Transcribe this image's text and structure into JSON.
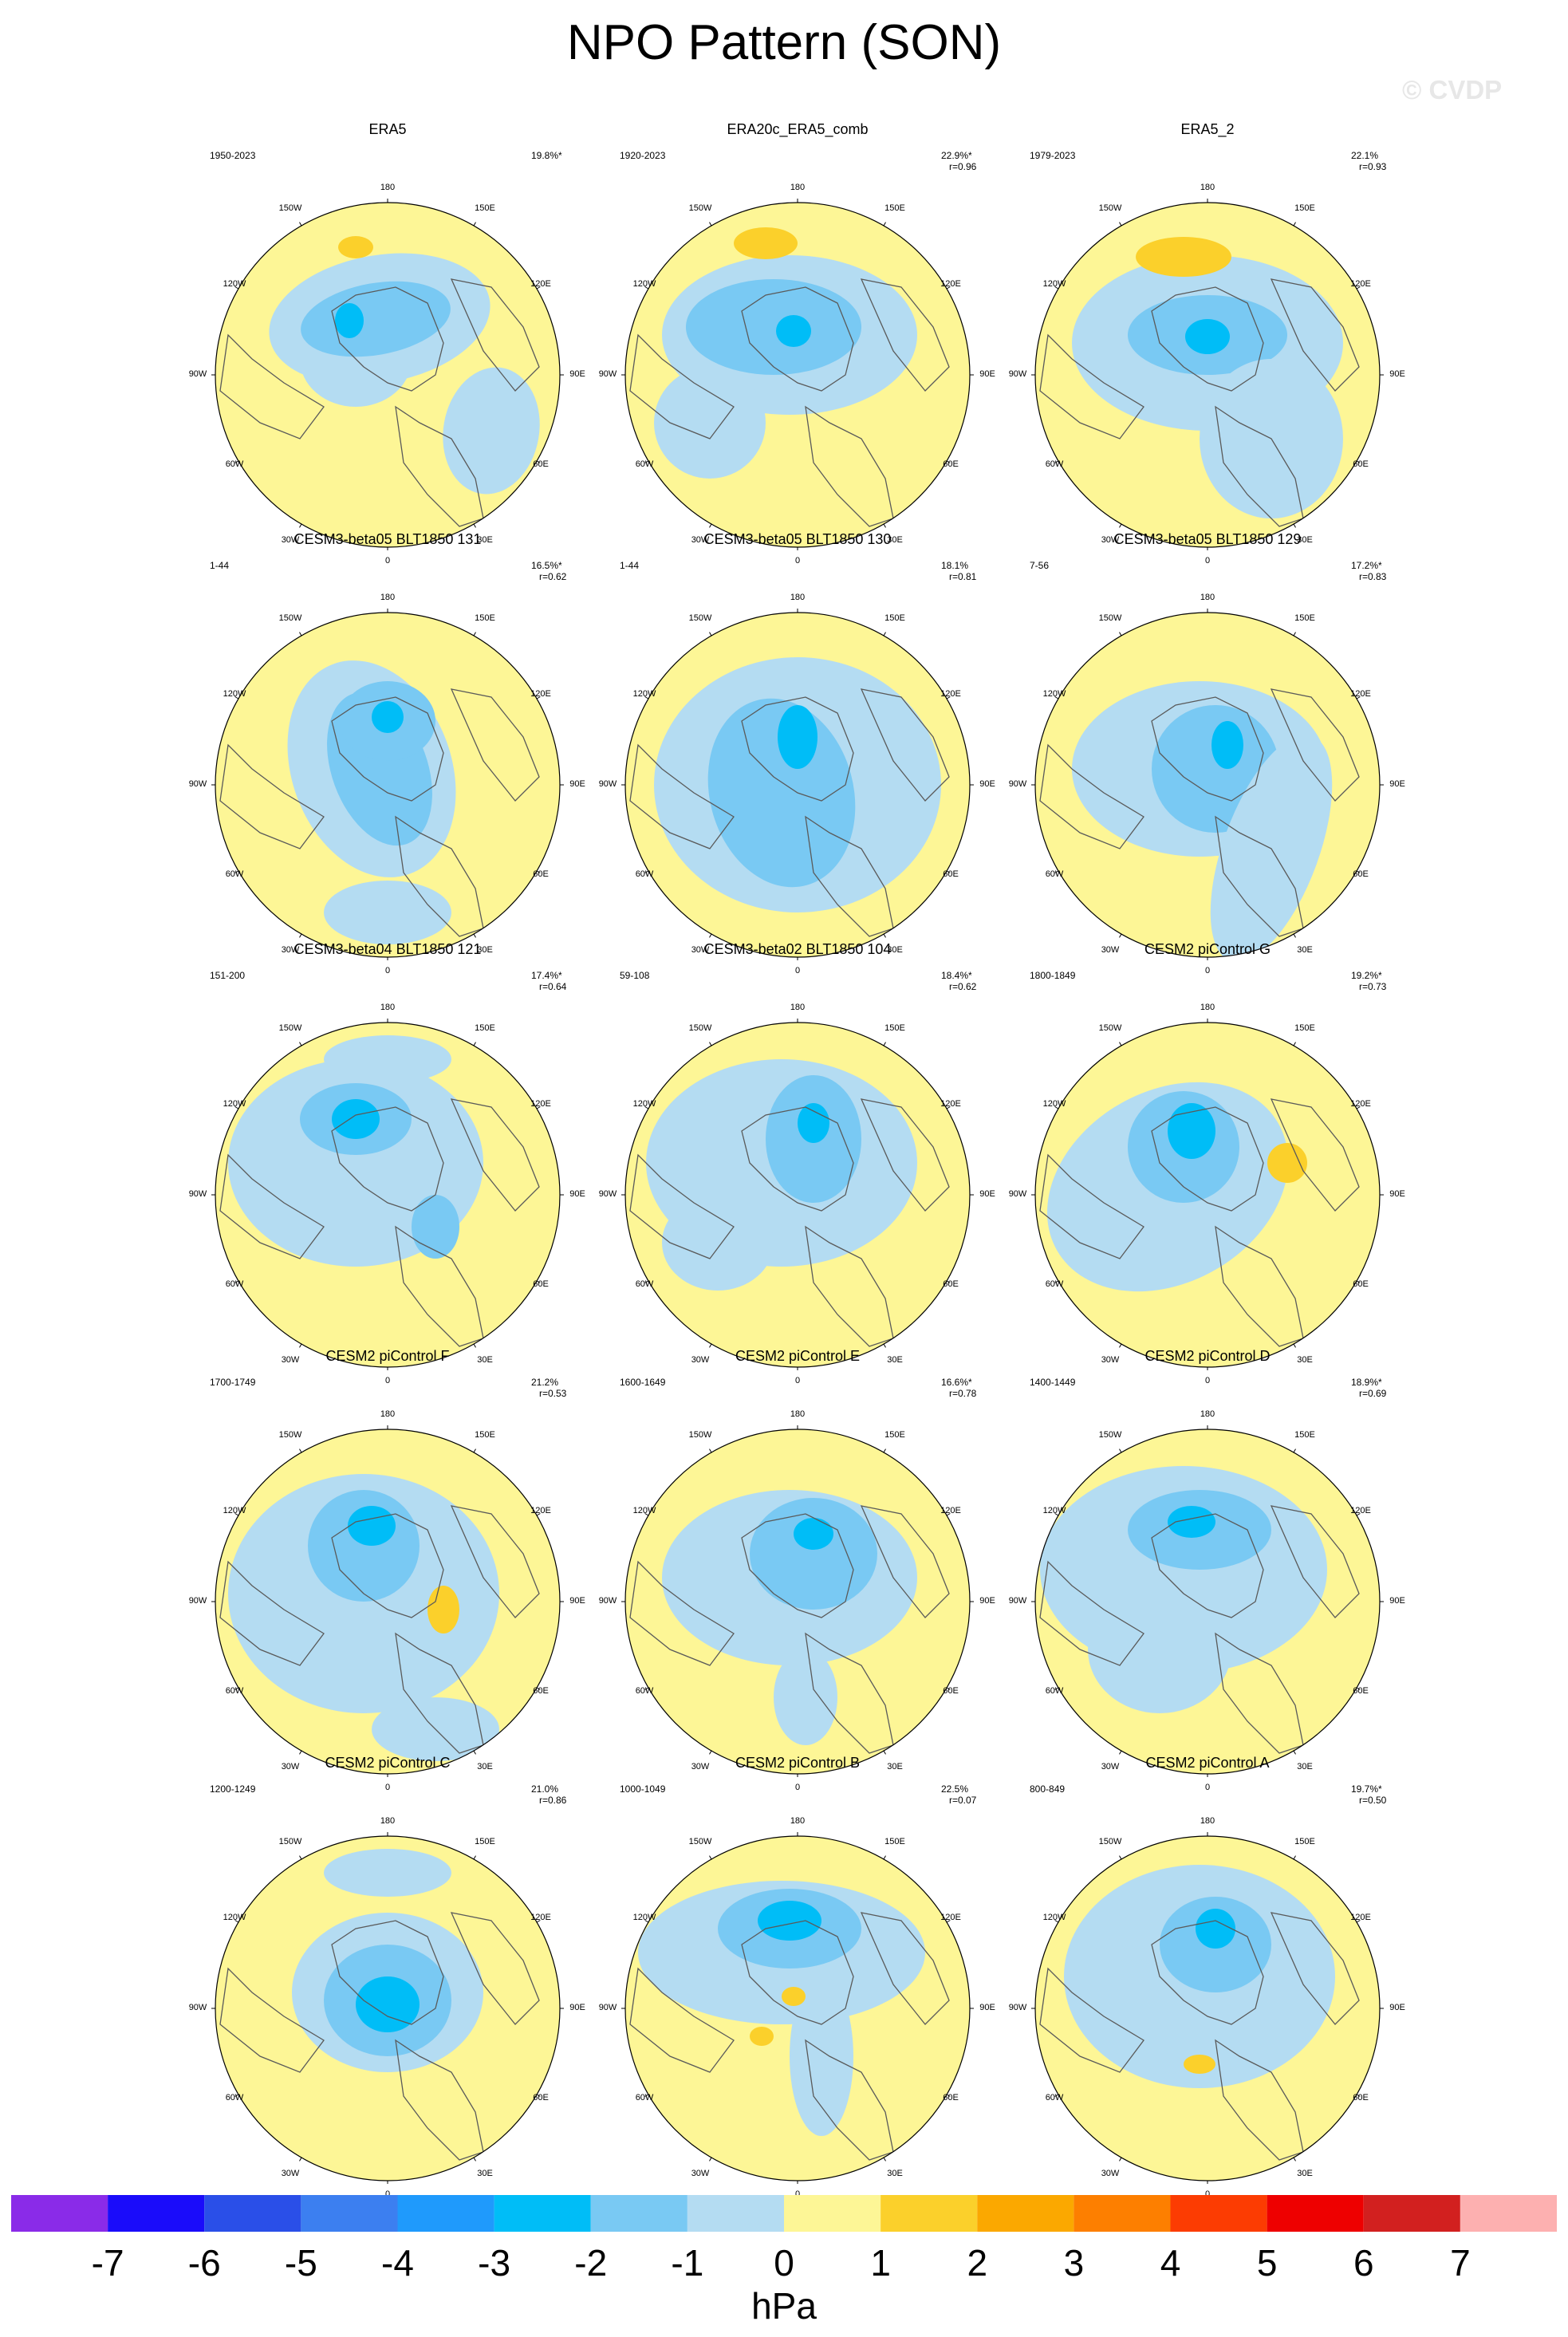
{
  "title": "NPO Pattern (SON)",
  "watermark": "© CVDP",
  "lon_labels": {
    "180": "180",
    "150W": "150W",
    "150E": "150E",
    "120W": "120W",
    "120E": "120E",
    "90W": "90W",
    "90E": "90E",
    "60W": "60W",
    "60E": "60E",
    "30W": "30W",
    "30E": "30E",
    "0": "0"
  },
  "colors": {
    "neg1": "#b4dcf2",
    "neg2": "#79c9f3",
    "neg3": "#00bdf7",
    "pos1": "#fdf696",
    "pos2": "#fbd02b",
    "land_outline": "#5a5a5a"
  },
  "panels": [
    {
      "title": "ERA5",
      "years": "1950-2023",
      "pct": "19.8%*",
      "r": ""
    },
    {
      "title": "ERA20c_ERA5_comb",
      "years": "1920-2023",
      "pct": "22.9%*",
      "r": "r=0.96"
    },
    {
      "title": "ERA5_2",
      "years": "1979-2023",
      "pct": "22.1%",
      "r": "r=0.93"
    },
    {
      "title": "CESM3-beta05 BLT1850 131",
      "years": "1-44",
      "pct": "16.5%*",
      "r": "r=0.62"
    },
    {
      "title": "CESM3-beta05 BLT1850 130",
      "years": "1-44",
      "pct": "18.1%",
      "r": "r=0.81"
    },
    {
      "title": "CESM3-beta05 BLT1850 129",
      "years": "7-56",
      "pct": "17.2%*",
      "r": "r=0.83"
    },
    {
      "title": "CESM3-beta04 BLT1850 121",
      "years": "151-200",
      "pct": "17.4%*",
      "r": "r=0.64"
    },
    {
      "title": "CESM3-beta02 BLT1850 104",
      "years": "59-108",
      "pct": "18.4%*",
      "r": "r=0.62"
    },
    {
      "title": "CESM2 piControl G",
      "years": "1800-1849",
      "pct": "19.2%*",
      "r": "r=0.73"
    },
    {
      "title": "CESM2 piControl F",
      "years": "1700-1749",
      "pct": "21.2%",
      "r": "r=0.53"
    },
    {
      "title": "CESM2 piControl E",
      "years": "1600-1649",
      "pct": "16.6%*",
      "r": "r=0.78"
    },
    {
      "title": "CESM2 piControl D",
      "years": "1400-1449",
      "pct": "18.9%*",
      "r": "r=0.69"
    },
    {
      "title": "CESM2 piControl C",
      "years": "1200-1249",
      "pct": "21.0%",
      "r": "r=0.86"
    },
    {
      "title": "CESM2 piControl B",
      "years": "1000-1049",
      "pct": "22.5%",
      "r": "r=0.07"
    },
    {
      "title": "CESM2 piControl A",
      "years": "800-849",
      "pct": "19.7%*",
      "r": "r=0.50"
    }
  ],
  "colorbar": {
    "units": "hPa",
    "ticks": [
      "-7",
      "-6",
      "-5",
      "-4",
      "-3",
      "-2",
      "-1",
      "0",
      "1",
      "2",
      "3",
      "4",
      "5",
      "6",
      "7"
    ],
    "colors": [
      "#8a2be8",
      "#1a0cfa",
      "#2a4fe8",
      "#3c7ff0",
      "#1f9afc",
      "#00bdf7",
      "#79c9f3",
      "#b4dcf2",
      "#fdf696",
      "#fbd02b",
      "#fba800",
      "#fd7f00",
      "#fc3c02",
      "#ee0000",
      "#d2201f",
      "#fdb0b0"
    ]
  }
}
